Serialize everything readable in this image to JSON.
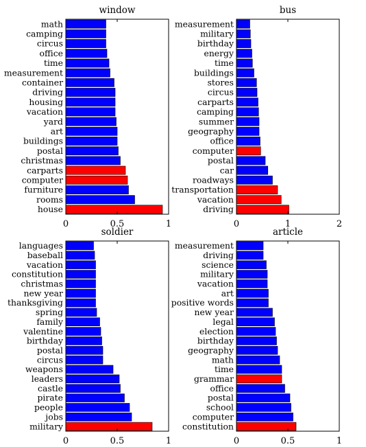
{
  "colors": {
    "default_bar": "#0000ff",
    "highlight_bar": "#ff0000"
  },
  "chart_data": [
    {
      "type": "bar",
      "orientation": "horizontal",
      "title": "window",
      "xlim": [
        0,
        1
      ],
      "xticks": [
        "0",
        "0.5",
        "1"
      ],
      "categories": [
        "math",
        "camping",
        "circus",
        "office",
        "time",
        "measurement",
        "container",
        "driving",
        "housing",
        "vacation",
        "yard",
        "art",
        "buildings",
        "postal",
        "christmas",
        "carparts",
        "computer",
        "furniture",
        "rooms",
        "house"
      ],
      "values": [
        0.39,
        0.39,
        0.39,
        0.4,
        0.42,
        0.43,
        0.47,
        0.48,
        0.48,
        0.48,
        0.49,
        0.5,
        0.5,
        0.51,
        0.53,
        0.58,
        0.6,
        0.61,
        0.67,
        0.94
      ],
      "highlighted": [
        false,
        false,
        false,
        false,
        false,
        false,
        false,
        false,
        false,
        false,
        false,
        false,
        false,
        false,
        false,
        true,
        true,
        false,
        false,
        true
      ]
    },
    {
      "type": "bar",
      "orientation": "horizontal",
      "title": "bus",
      "xlim": [
        0,
        2
      ],
      "xticks": [
        "0",
        "1",
        "2"
      ],
      "categories": [
        "measurement",
        "military",
        "birthday",
        "energy",
        "time",
        "buildings",
        "stores",
        "circus",
        "carparts",
        "camping",
        "summer",
        "geography",
        "office",
        "computer",
        "postal",
        "car",
        "roadways",
        "transportation",
        "vacation",
        "driving"
      ],
      "values": [
        0.26,
        0.27,
        0.28,
        0.3,
        0.31,
        0.34,
        0.39,
        0.4,
        0.42,
        0.43,
        0.44,
        0.44,
        0.46,
        0.47,
        0.56,
        0.61,
        0.7,
        0.8,
        0.87,
        1.02
      ],
      "highlighted": [
        false,
        false,
        false,
        false,
        false,
        false,
        false,
        false,
        false,
        false,
        false,
        false,
        false,
        true,
        false,
        false,
        false,
        true,
        true,
        true
      ]
    },
    {
      "type": "bar",
      "orientation": "horizontal",
      "title": "soldier",
      "xlim": [
        0,
        1
      ],
      "xticks": [
        "0",
        "0.5",
        "1"
      ],
      "categories": [
        "languages",
        "baseball",
        "vacation",
        "constitution",
        "christmas",
        "new year",
        "thanksgiving",
        "spring",
        "family",
        "valentine",
        "birthday",
        "postal",
        "circus",
        "weapons",
        "leaders",
        "castle",
        "pirate",
        "people",
        "jobs",
        "military"
      ],
      "values": [
        0.27,
        0.28,
        0.29,
        0.29,
        0.29,
        0.29,
        0.29,
        0.3,
        0.33,
        0.34,
        0.35,
        0.36,
        0.36,
        0.46,
        0.52,
        0.53,
        0.57,
        0.62,
        0.64,
        0.84
      ],
      "highlighted": [
        false,
        false,
        false,
        false,
        false,
        false,
        false,
        false,
        false,
        false,
        false,
        false,
        false,
        false,
        false,
        false,
        false,
        false,
        false,
        true
      ]
    },
    {
      "type": "bar",
      "orientation": "horizontal",
      "title": "article",
      "xlim": [
        0,
        1
      ],
      "xticks": [
        "0",
        "0.5",
        "1"
      ],
      "categories": [
        "measurement",
        "driving",
        "science",
        "military",
        "vacation",
        "art",
        "positive words",
        "new year",
        "legal",
        "election",
        "birthday",
        "geography",
        "math",
        "time",
        "grammar",
        "office",
        "postal",
        "school",
        "computer",
        "constitution"
      ],
      "values": [
        0.26,
        0.26,
        0.29,
        0.3,
        0.3,
        0.31,
        0.31,
        0.35,
        0.37,
        0.38,
        0.39,
        0.4,
        0.42,
        0.44,
        0.44,
        0.47,
        0.52,
        0.53,
        0.55,
        0.58
      ],
      "highlighted": [
        false,
        false,
        false,
        false,
        false,
        false,
        false,
        false,
        false,
        false,
        false,
        false,
        false,
        false,
        true,
        false,
        false,
        false,
        false,
        true
      ]
    }
  ]
}
